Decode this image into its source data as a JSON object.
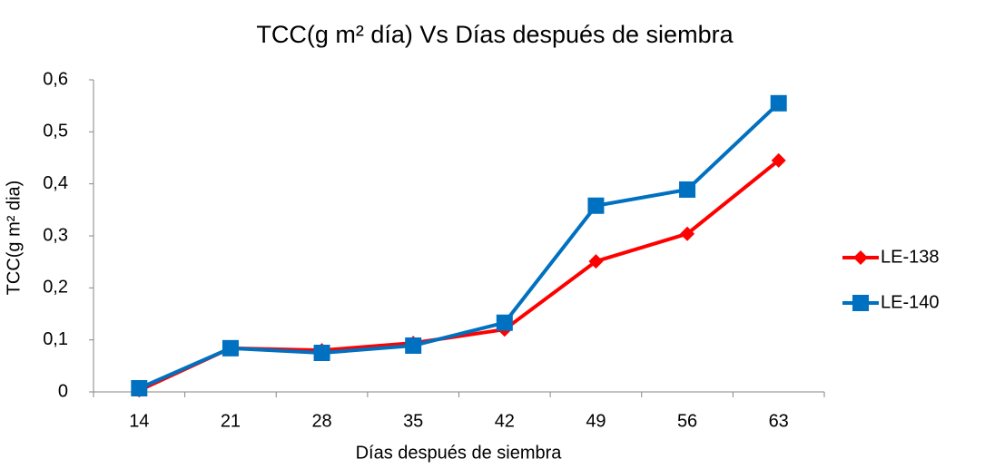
{
  "chart_data": {
    "type": "line",
    "title": "TCC(g m² día)  Vs Días después de siembra",
    "x_label": "Días después de siembra",
    "y_label": "TCC(g m² dia)",
    "categories": [
      "14",
      "21",
      "28",
      "35",
      "42",
      "49",
      "56",
      "63"
    ],
    "series": [
      {
        "name": "LE-138",
        "color": "#ff0000",
        "marker": "diamond",
        "values": [
          0.003,
          0.084,
          0.08,
          0.094,
          0.12,
          0.251,
          0.304,
          0.445
        ]
      },
      {
        "name": "LE-140",
        "color": "#0070c0",
        "marker": "square",
        "values": [
          0.007,
          0.084,
          0.075,
          0.089,
          0.133,
          0.358,
          0.389,
          0.555
        ]
      }
    ],
    "ylim": [
      0,
      0.6
    ],
    "yticks": [
      0,
      {
        "value": 0.1,
        "label": "0,1"
      },
      {
        "value": 0.2,
        "label": "0,2"
      },
      {
        "value": 0.3,
        "label": "0,3"
      },
      {
        "value": 0.4,
        "label": "0,4"
      },
      {
        "value": 0.5,
        "label": "0,5"
      },
      {
        "value": 0.6,
        "label": "0,6"
      }
    ],
    "grid": false,
    "legend": "right"
  }
}
